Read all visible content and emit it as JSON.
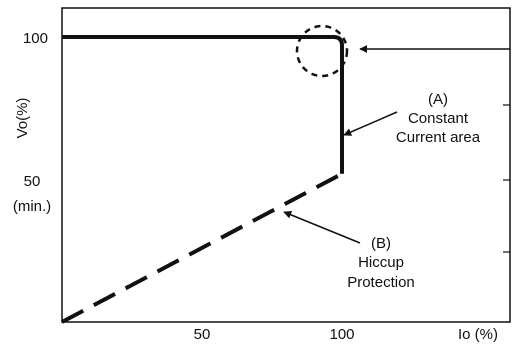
{
  "chart_data": {
    "type": "line",
    "xlabel": "Io (%)",
    "ylabel": "Vo(%)",
    "xlim": [
      0,
      160
    ],
    "ylim": [
      0,
      110
    ],
    "x_ticks": [
      {
        "value": 50,
        "label": "50"
      },
      {
        "value": 100,
        "label": "100"
      }
    ],
    "y_ticks": [
      {
        "value": 100,
        "label": "100"
      },
      {
        "value": 50,
        "label": "50"
      }
    ],
    "y_tick_note": "(min.)",
    "series": [
      {
        "style": "solid",
        "points": [
          [
            0,
            100
          ],
          [
            97,
            100
          ],
          [
            100,
            97
          ],
          [
            100,
            52
          ]
        ]
      },
      {
        "style": "dashed",
        "points": [
          [
            0,
            0
          ],
          [
            100,
            52
          ]
        ]
      }
    ],
    "annotations": {
      "a_tag": "(A)",
      "a_line1": "Constant",
      "a_line2": "Current area",
      "b_tag": "(B)",
      "b_line1": "Hiccup",
      "b_line2": "Protection"
    },
    "highlight": "dashed circle around the knee at Io ≈ 100%, Vo = 100%",
    "grid": false
  }
}
